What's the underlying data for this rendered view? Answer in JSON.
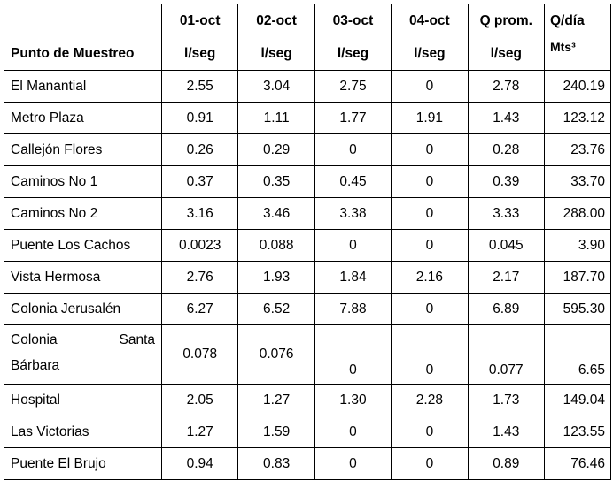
{
  "table": {
    "header": {
      "col0": "Punto de Muestreo",
      "cols": [
        {
          "line1": "01-oct",
          "line2": "l/seg"
        },
        {
          "line1": "02-oct",
          "line2": "l/seg"
        },
        {
          "line1": "03-oct",
          "line2": "l/seg"
        },
        {
          "line1": "04-oct",
          "line2": "l/seg"
        },
        {
          "line1": "Q prom.",
          "line2": "l/seg"
        },
        {
          "line1": "Q/día",
          "line2": "Mts³"
        }
      ]
    },
    "rows": [
      {
        "name": "El Manantial",
        "v": [
          "2.55",
          "3.04",
          "2.75",
          "0",
          "2.78",
          "240.19"
        ]
      },
      {
        "name": "Metro Plaza",
        "v": [
          "0.91",
          "1.11",
          "1.77",
          "1.91",
          "1.43",
          "123.12"
        ]
      },
      {
        "name": "Callejón Flores",
        "v": [
          "0.26",
          "0.29",
          "0",
          "0",
          "0.28",
          "23.76"
        ]
      },
      {
        "name": "Caminos No 1",
        "v": [
          "0.37",
          "0.35",
          "0.45",
          "0",
          "0.39",
          "33.70"
        ]
      },
      {
        "name": "Caminos No 2",
        "v": [
          "3.16",
          "3.46",
          "3.38",
          "0",
          "3.33",
          "288.00"
        ]
      },
      {
        "name": "Puente Los Cachos",
        "v": [
          "0.0023",
          "0.088",
          "0",
          "0",
          "0.045",
          "3.90"
        ]
      },
      {
        "name": "Vista Hermosa",
        "v": [
          "2.76",
          "1.93",
          "1.84",
          "2.16",
          "2.17",
          "187.70"
        ]
      },
      {
        "name": "Colonia Jerusalén",
        "v": [
          "6.27",
          "6.52",
          "7.88",
          "0",
          "6.89",
          "595.30"
        ]
      },
      {
        "name_a": "Colonia",
        "name_b": "Santa",
        "name_c": "Bárbara",
        "v": [
          "0.078",
          "0.076",
          "0",
          "0",
          "0.077",
          "6.65"
        ]
      },
      {
        "name": "Hospital",
        "v": [
          "2.05",
          "1.27",
          "1.30",
          "2.28",
          "1.73",
          "149.04"
        ]
      },
      {
        "name": "Las Victorias",
        "v": [
          "1.27",
          "1.59",
          "0",
          "0",
          "1.43",
          "123.55"
        ]
      },
      {
        "name": "Puente El Brujo",
        "v": [
          "0.94",
          "0.83",
          "0",
          "0",
          "0.89",
          "76.46"
        ]
      }
    ]
  }
}
